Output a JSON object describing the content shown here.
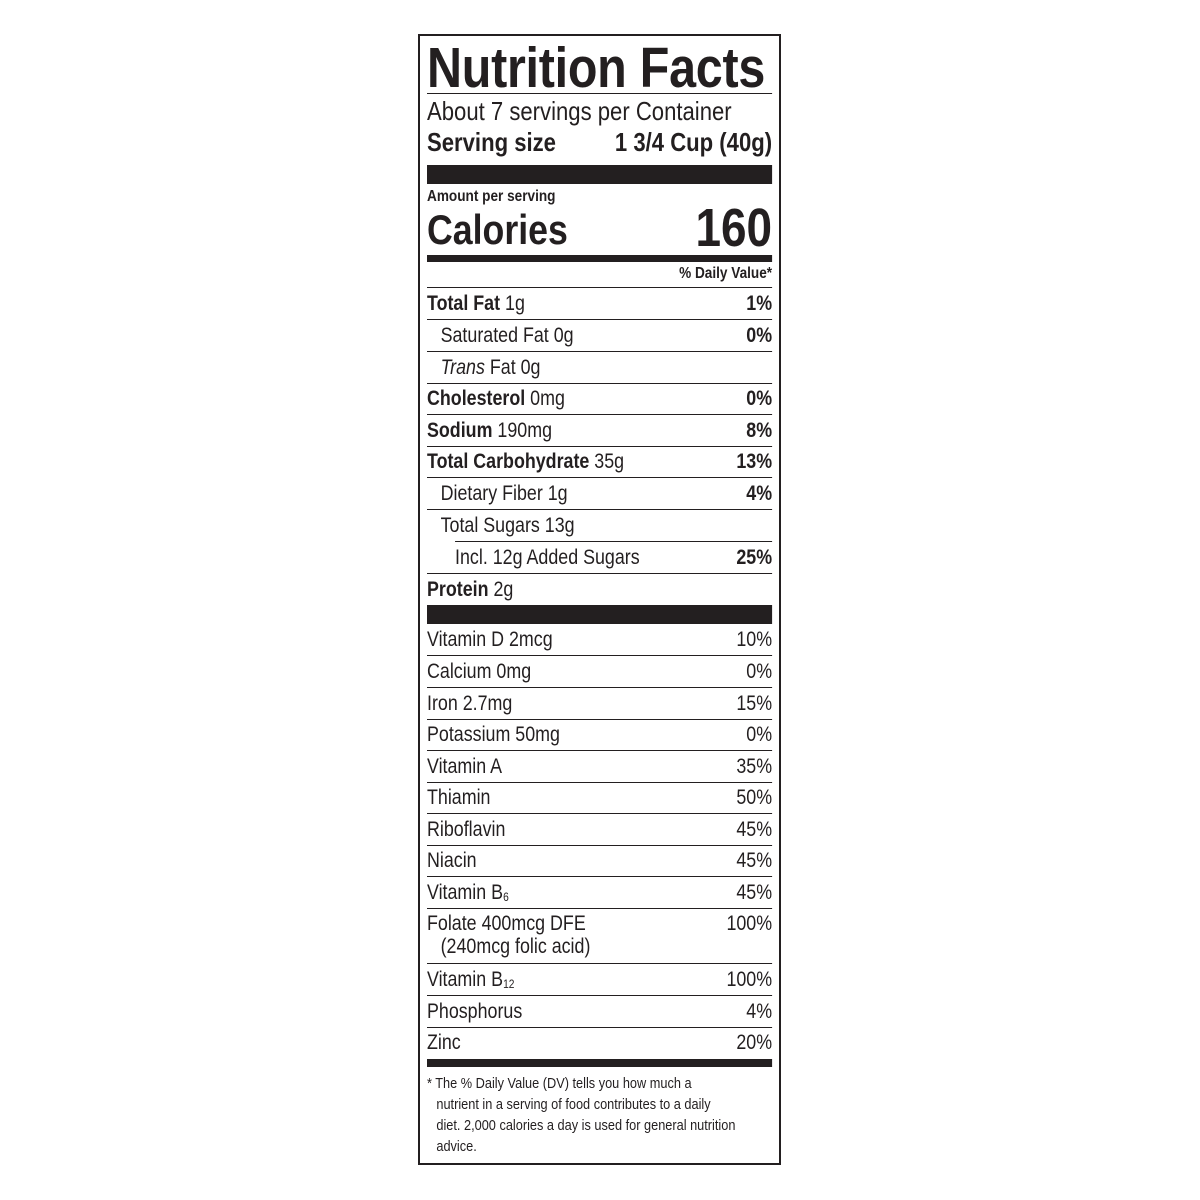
{
  "title": "Nutrition Facts",
  "servings_per_container": "About 7 servings per Container",
  "serving_size": {
    "label": "Serving size",
    "value": "1 3/4 Cup (40g)"
  },
  "amount_per_serving": "Amount per serving",
  "calories": {
    "label": "Calories",
    "value": "160"
  },
  "daily_value_header": "% Daily Value*",
  "nutrients": [
    {
      "name": "Total Fat",
      "amount": "1g",
      "dv": "1%"
    },
    {
      "name": "Saturated Fat",
      "amount": "0g",
      "dv": "0%"
    },
    {
      "name": "Trans",
      "name_suffix": "Fat",
      "amount": "0g",
      "dv": ""
    },
    {
      "name": "Cholesterol",
      "amount": "0mg",
      "dv": "0%"
    },
    {
      "name": "Sodium",
      "amount": "190mg",
      "dv": "8%"
    },
    {
      "name": "Total Carbohydrate",
      "amount": "35g",
      "dv": "13%"
    },
    {
      "name": "Dietary Fiber",
      "amount": "1g",
      "dv": "4%"
    },
    {
      "name": "Total Sugars",
      "amount": "13g",
      "dv": ""
    },
    {
      "name": "Incl. 12g Added Sugars",
      "amount": "",
      "dv": "25%"
    },
    {
      "name": "Protein",
      "amount": "2g",
      "dv": ""
    }
  ],
  "vitamins": [
    {
      "name": "Vitamin D 2mcg",
      "dv": "10%"
    },
    {
      "name": "Calcium 0mg",
      "dv": "0%"
    },
    {
      "name": "Iron 2.7mg",
      "dv": "15%"
    },
    {
      "name": "Potassium 50mg",
      "dv": "0%"
    },
    {
      "name": "Vitamin A",
      "dv": "35%"
    },
    {
      "name": "Thiamin",
      "dv": "50%"
    },
    {
      "name": "Riboflavin",
      "dv": "45%"
    },
    {
      "name": "Niacin",
      "dv": "45%"
    },
    {
      "name": "Vitamin B",
      "sub": "6",
      "dv": "45%"
    },
    {
      "name": "Folate 400mcg DFE",
      "note": "(240mcg folic acid)",
      "dv": "100%"
    },
    {
      "name": "Vitamin B",
      "sub": "12",
      "dv": "100%"
    },
    {
      "name": "Phosphorus",
      "dv": "4%"
    },
    {
      "name": "Zinc",
      "dv": "20%"
    }
  ],
  "footnote": [
    "* The % Daily Value (DV) tells you how much a",
    "nutrient in a serving of food contributes to a daily",
    "diet. 2,000 calories a day is used for general nutrition",
    "advice."
  ]
}
